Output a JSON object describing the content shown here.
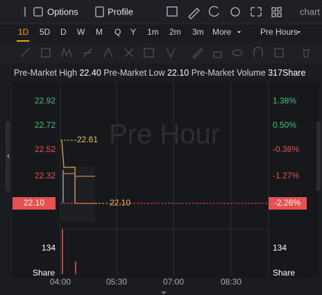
{
  "toolbar": {
    "options": "Options",
    "profile": "Profile",
    "chart": "chart"
  },
  "periods": [
    "1D",
    "5D",
    "D",
    "W",
    "M",
    "Q",
    "Y",
    "1m",
    "2m",
    "3m"
  ],
  "more": "More",
  "session": "Pre Hours",
  "info": [
    {
      "label": "Pre-Market High",
      "value": "22.40"
    },
    {
      "label": "Pre-Market Low",
      "value": "22.10"
    },
    {
      "label": "Pre-Market Volume",
      "value": "317Share"
    }
  ],
  "watermark": "Pre Hour",
  "price_axis": [
    "22.92",
    "22.72",
    "22.52",
    "22.32"
  ],
  "current_price": "22.10",
  "percent_axis": [
    "1.38%",
    "0.50%",
    "-0.38%",
    "-1.27%"
  ],
  "current_percent": "-2.26%",
  "high_marker": "22.61",
  "low_marker": "22.10",
  "volume_axis": "134",
  "volume_unit": "Share",
  "time_axis": [
    "04:00",
    "05:30",
    "07:00",
    "08:30"
  ]
}
